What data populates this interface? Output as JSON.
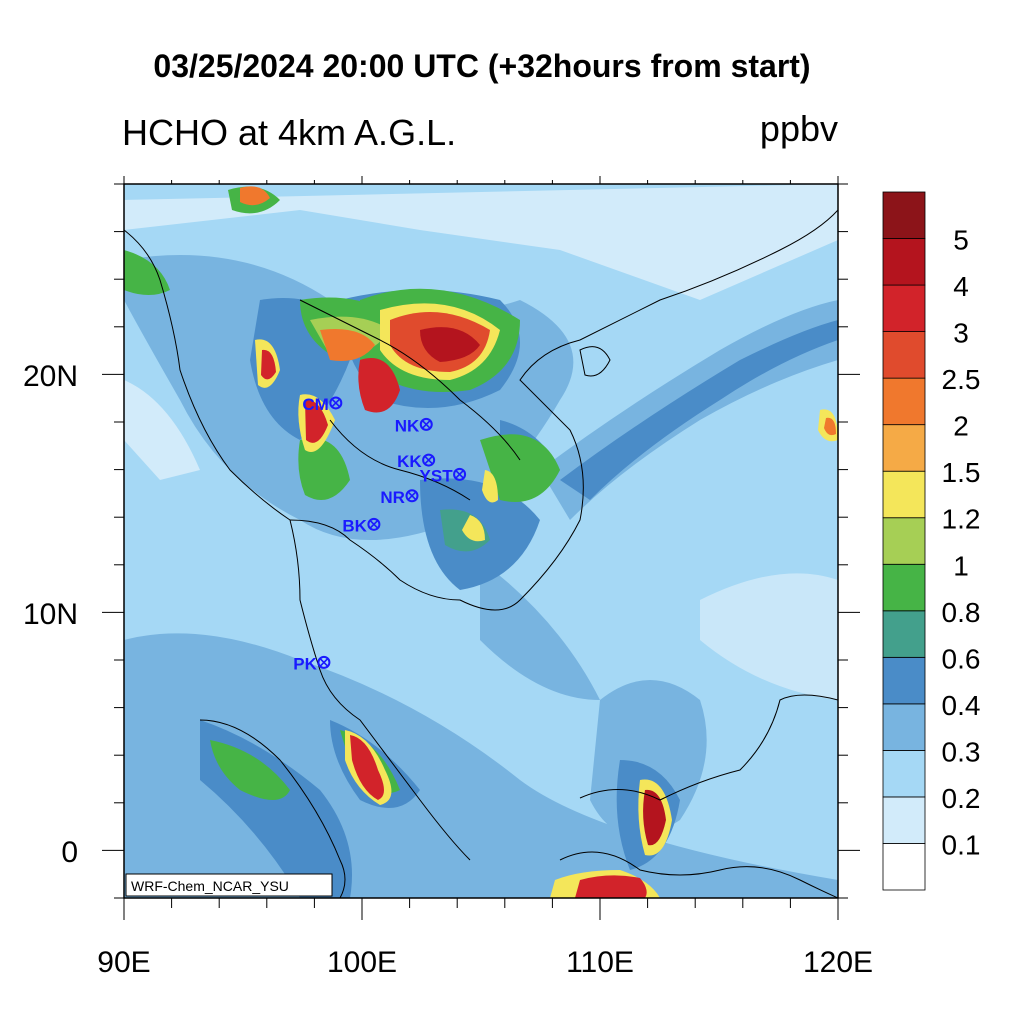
{
  "title": "03/25/2024 20:00 UTC (+32hours from start)",
  "subtitle": "HCHO at 4km A.G.L.",
  "units": "ppbv",
  "credit": "WRF-Chem_NCAR_YSU",
  "x_ticks": [
    "90E",
    "100E",
    "110E",
    "120E"
  ],
  "y_ticks": [
    "20N",
    "10N",
    "0"
  ],
  "colorbar_labels": [
    "0.1",
    "0.2",
    "0.3",
    "0.4",
    "0.6",
    "0.8",
    "1",
    "1.2",
    "1.5",
    "2",
    "2.5",
    "3",
    "4",
    "5"
  ],
  "colorbar_colors": [
    "#ffffff",
    "#d2ebfa",
    "#a5d8f5",
    "#78b4e0",
    "#4a8cc8",
    "#43a08c",
    "#46b446",
    "#a6cf55",
    "#f4e65a",
    "#f5aa46",
    "#f0782d",
    "#e04b2d",
    "#d2232a",
    "#b4141e",
    "#8c1419"
  ],
  "stations": [
    {
      "label": "CM",
      "lon": 98.9,
      "lat": 18.8
    },
    {
      "label": "NK",
      "lon": 102.7,
      "lat": 17.9
    },
    {
      "label": "KK",
      "lon": 102.8,
      "lat": 16.4
    },
    {
      "label": "YST",
      "lon": 104.1,
      "lat": 15.8
    },
    {
      "label": "NR",
      "lon": 102.1,
      "lat": 14.9
    },
    {
      "label": "BK",
      "lon": 100.5,
      "lat": 13.7
    },
    {
      "label": "PK",
      "lon": 98.4,
      "lat": 7.9
    }
  ],
  "map": {
    "lon_range": [
      90,
      120
    ],
    "lat_range": [
      -2,
      28
    ],
    "marker_color": "#1a1aff"
  }
}
